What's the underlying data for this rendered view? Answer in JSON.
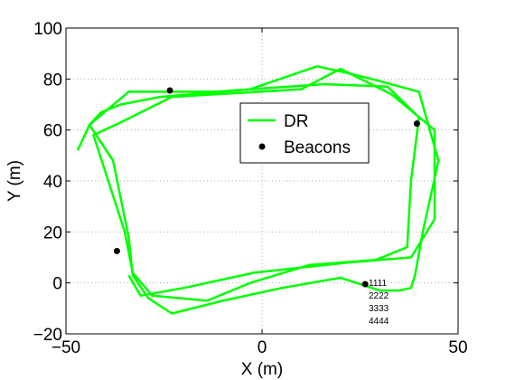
{
  "chart_data": {
    "type": "line",
    "title": "",
    "xlabel": "X (m)",
    "ylabel": "Y (m)",
    "xlim": [
      -50,
      50
    ],
    "ylim": [
      -20,
      100
    ],
    "xticks": [
      -50,
      0,
      50
    ],
    "yticks": [
      -20,
      0,
      20,
      40,
      60,
      80,
      100
    ],
    "xtick_labels": [
      "−50",
      "0",
      "50"
    ],
    "ytick_labels": [
      "−20",
      "0",
      "20",
      "40",
      "60",
      "80",
      "100"
    ],
    "grid": true,
    "legend_position": "upper-middle-right",
    "colors": {
      "dr": "#00ff00",
      "beacons": "#000000"
    },
    "series": [
      {
        "name": "DR",
        "style": "line",
        "x": [
          -47,
          -44,
          -41,
          -36,
          -26,
          -3,
          14,
          20,
          28,
          40,
          45,
          41,
          39,
          38,
          35,
          30,
          20,
          5,
          -10,
          -23,
          -29,
          -33,
          -34,
          -38,
          -44,
          -34,
          -12,
          16,
          32,
          40,
          38,
          37,
          29,
          12,
          -3,
          -14,
          -28,
          -33,
          -35,
          -43,
          -36,
          -23,
          10,
          20,
          33,
          44,
          44,
          38,
          22,
          -2,
          -20,
          -31,
          -34
        ],
        "y": [
          52,
          62,
          67,
          70,
          73,
          76,
          85,
          83,
          80,
          75,
          48,
          20,
          3,
          -2,
          -3,
          -3,
          2,
          -2,
          -7,
          -12,
          -6,
          3,
          18,
          48,
          62,
          75,
          75,
          78,
          77,
          65,
          40,
          14,
          9,
          7,
          0,
          -7,
          -5,
          4,
          20,
          58,
          63,
          73,
          76,
          84,
          74,
          60,
          25,
          10,
          8,
          4,
          -2,
          -5,
          3
        ]
      },
      {
        "name": "Beacons",
        "style": "markers",
        "x": [
          -23.5,
          39.5,
          -37,
          26.3
        ],
        "y": [
          75.5,
          62.5,
          12.5,
          -0.5
        ]
      }
    ],
    "annotations": [
      "1111",
      "2222",
      "3333",
      "4444"
    ]
  }
}
